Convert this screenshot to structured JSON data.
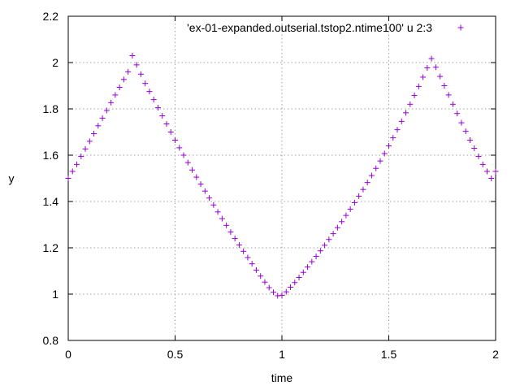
{
  "chart_data": {
    "type": "scatter",
    "xlabel": "time",
    "ylabel": "y",
    "xlim": [
      0,
      2
    ],
    "ylim": [
      0.8,
      2.2
    ],
    "grid": true,
    "legend_position": "top-right",
    "x_ticks": [
      "0",
      "0.5",
      "1",
      "1.5",
      "2"
    ],
    "y_ticks": [
      "0.8",
      "1",
      "1.2",
      "1.4",
      "1.6",
      "1.8",
      "2",
      "2.2"
    ],
    "marker": "+",
    "colors": {
      "series": "#9400d3",
      "grid": "#a0a0a0",
      "axes": "#000000"
    },
    "series": [
      {
        "name": "'ex-01-expanded.outserial.tstop2.ntime100' u 2:3",
        "x": [
          0,
          0.02,
          0.04,
          0.06,
          0.08,
          0.1,
          0.12,
          0.14,
          0.16,
          0.18,
          0.2,
          0.22,
          0.24,
          0.26,
          0.28,
          0.3,
          0.32,
          0.34,
          0.36,
          0.38,
          0.4,
          0.42,
          0.44,
          0.46,
          0.48,
          0.5,
          0.52,
          0.54,
          0.56,
          0.58,
          0.6,
          0.62,
          0.64,
          0.66,
          0.68,
          0.7,
          0.72,
          0.74,
          0.76,
          0.78,
          0.8,
          0.82,
          0.84,
          0.86,
          0.88,
          0.9,
          0.92,
          0.94,
          0.96,
          0.98,
          1,
          1.02,
          1.04,
          1.06,
          1.08,
          1.1,
          1.12,
          1.14,
          1.16,
          1.18,
          1.2,
          1.22,
          1.24,
          1.26,
          1.28,
          1.3,
          1.32,
          1.34,
          1.36,
          1.38,
          1.4,
          1.42,
          1.44,
          1.46,
          1.48,
          1.5,
          1.52,
          1.54,
          1.56,
          1.58,
          1.6,
          1.62,
          1.64,
          1.66,
          1.68,
          1.7,
          1.72,
          1.74,
          1.76,
          1.78,
          1.8,
          1.82,
          1.84,
          1.86,
          1.88,
          1.9,
          1.92,
          1.94,
          1.96,
          1.98,
          2
        ],
        "y": [
          1.5,
          1.53,
          1.56,
          1.595,
          1.627,
          1.66,
          1.693,
          1.727,
          1.76,
          1.793,
          1.827,
          1.86,
          1.893,
          1.927,
          1.96,
          2.03,
          1.99,
          1.95,
          1.91,
          1.875,
          1.84,
          1.805,
          1.77,
          1.735,
          1.7,
          1.665,
          1.632,
          1.6,
          1.568,
          1.536,
          1.505,
          1.475,
          1.445,
          1.415,
          1.385,
          1.355,
          1.326,
          1.297,
          1.268,
          1.24,
          1.212,
          1.185,
          1.158,
          1.131,
          1.104,
          1.078,
          1.052,
          1.028,
          1.008,
          0.993,
          0.995,
          1.01,
          1.03,
          1.05,
          1.072,
          1.094,
          1.117,
          1.14,
          1.163,
          1.187,
          1.211,
          1.236,
          1.261,
          1.287,
          1.313,
          1.34,
          1.367,
          1.395,
          1.423,
          1.452,
          1.482,
          1.512,
          1.543,
          1.575,
          1.607,
          1.64,
          1.675,
          1.71,
          1.746,
          1.783,
          1.82,
          1.858,
          1.897,
          1.937,
          1.977,
          2.017,
          1.98,
          1.94,
          1.9,
          1.86,
          1.82,
          1.78,
          1.74,
          1.703,
          1.665,
          1.63,
          1.595,
          1.56,
          1.53,
          1.5,
          1.53
        ]
      }
    ]
  }
}
